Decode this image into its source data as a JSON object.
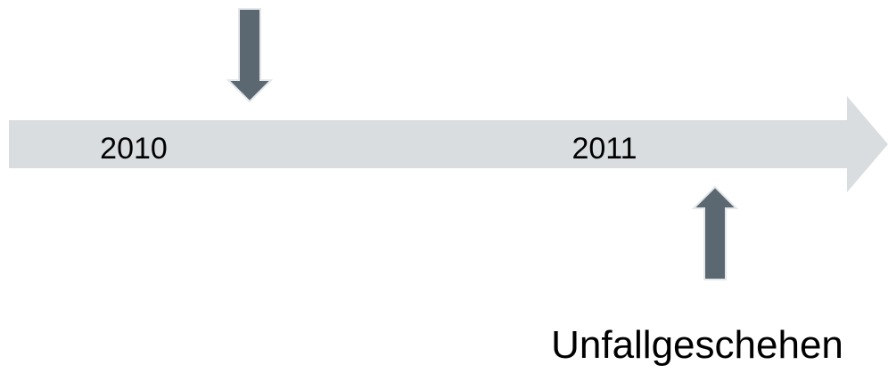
{
  "timeline": {
    "labels": [
      "2010",
      "2011"
    ]
  },
  "annotations": {
    "bottom": "Unfallgeschehen"
  }
}
